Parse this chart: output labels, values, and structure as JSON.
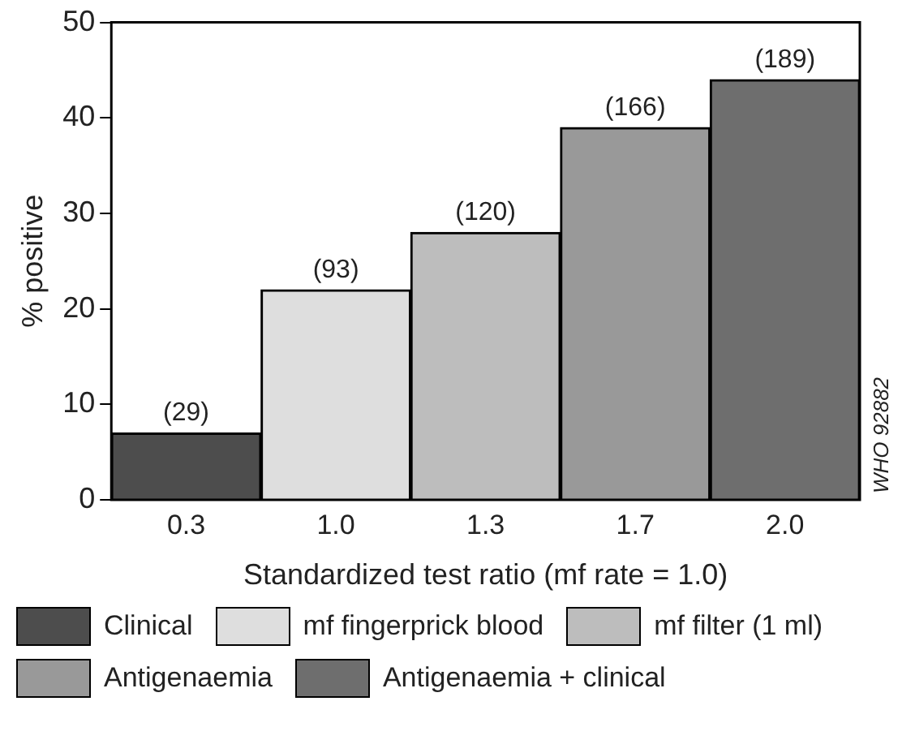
{
  "chart_data": {
    "type": "bar",
    "xlabel": "Standardized test ratio (mf rate = 1.0)",
    "ylabel": "% positive",
    "categories": [
      "0.3",
      "1.0",
      "1.3",
      "1.7",
      "2.0"
    ],
    "series": [
      {
        "name": "Clinical",
        "color": "#4d4d4d",
        "values": [
          7,
          null,
          null,
          null,
          null
        ]
      },
      {
        "name": "mf fingerprick blood",
        "color": "#dedede",
        "values": [
          null,
          22,
          null,
          null,
          null
        ]
      },
      {
        "name": "mf filter (1 ml)",
        "color": "#bdbdbd",
        "values": [
          null,
          null,
          28,
          null,
          null
        ]
      },
      {
        "name": "Antigenaemia",
        "color": "#999999",
        "values": [
          null,
          null,
          null,
          39,
          null
        ]
      },
      {
        "name": "Antigenaemia + clinical",
        "color": "#6e6e6e",
        "values": [
          null,
          null,
          null,
          null,
          44
        ]
      }
    ],
    "ylim": [
      0,
      50
    ],
    "yticks": [
      0,
      10,
      20,
      30,
      40,
      50
    ],
    "grid": false,
    "legend": "bottom",
    "annotations": [
      {
        "text": "(29)",
        "x": "0.3",
        "y": 7
      },
      {
        "text": "(93)",
        "x": "1.0",
        "y": 22
      },
      {
        "text": "(120)",
        "x": "1.3",
        "y": 28
      },
      {
        "text": "(166)",
        "x": "1.7",
        "y": 39
      },
      {
        "text": "(189)",
        "x": "2.0",
        "y": 44
      },
      "WHO 92882"
    ]
  }
}
